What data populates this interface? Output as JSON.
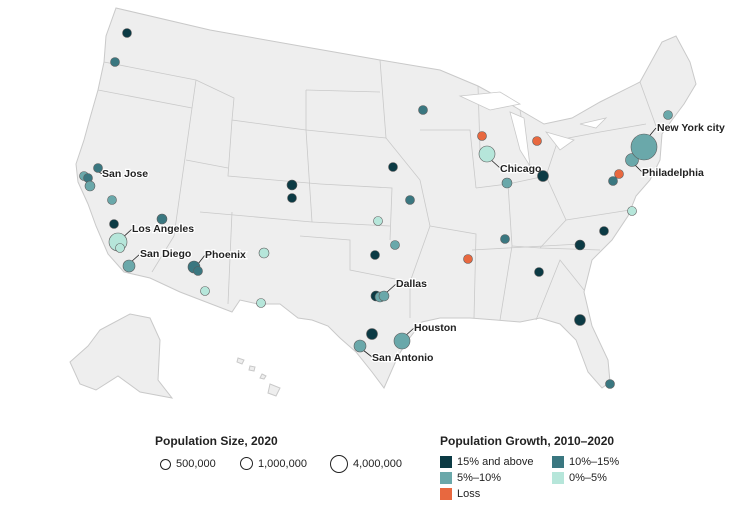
{
  "colors": {
    "growth_15_plus": "#0b3a44",
    "growth_10_15": "#3a7780",
    "growth_5_10": "#6aa8aa",
    "growth_0_5": "#b6e6da",
    "loss": "#e8683f",
    "land": "#eeeeee",
    "border": "#bdbdbd"
  },
  "size_legend": {
    "title": "Population Size, 2020",
    "items": [
      {
        "label": "500,000",
        "population": 500000
      },
      {
        "label": "1,000,000",
        "population": 1000000
      },
      {
        "label": "4,000,000",
        "population": 4000000
      }
    ]
  },
  "growth_legend": {
    "title": "Population Growth, 2010–2020",
    "items": [
      {
        "label": "15% and above",
        "category": "growth_15_plus"
      },
      {
        "label": "10%–15%",
        "category": "growth_10_15"
      },
      {
        "label": "5%–10%",
        "category": "growth_5_10"
      },
      {
        "label": "0%–5%",
        "category": "growth_0_5"
      },
      {
        "label": "Loss",
        "category": "loss"
      }
    ]
  },
  "city_labels": [
    {
      "name": "New York city"
    },
    {
      "name": "Philadelphia"
    },
    {
      "name": "Chicago"
    },
    {
      "name": "San Jose"
    },
    {
      "name": "Los Angeles"
    },
    {
      "name": "San Diego"
    },
    {
      "name": "Phoenix"
    },
    {
      "name": "Dallas"
    },
    {
      "name": "Houston"
    },
    {
      "name": "San Antonio"
    }
  ]
}
